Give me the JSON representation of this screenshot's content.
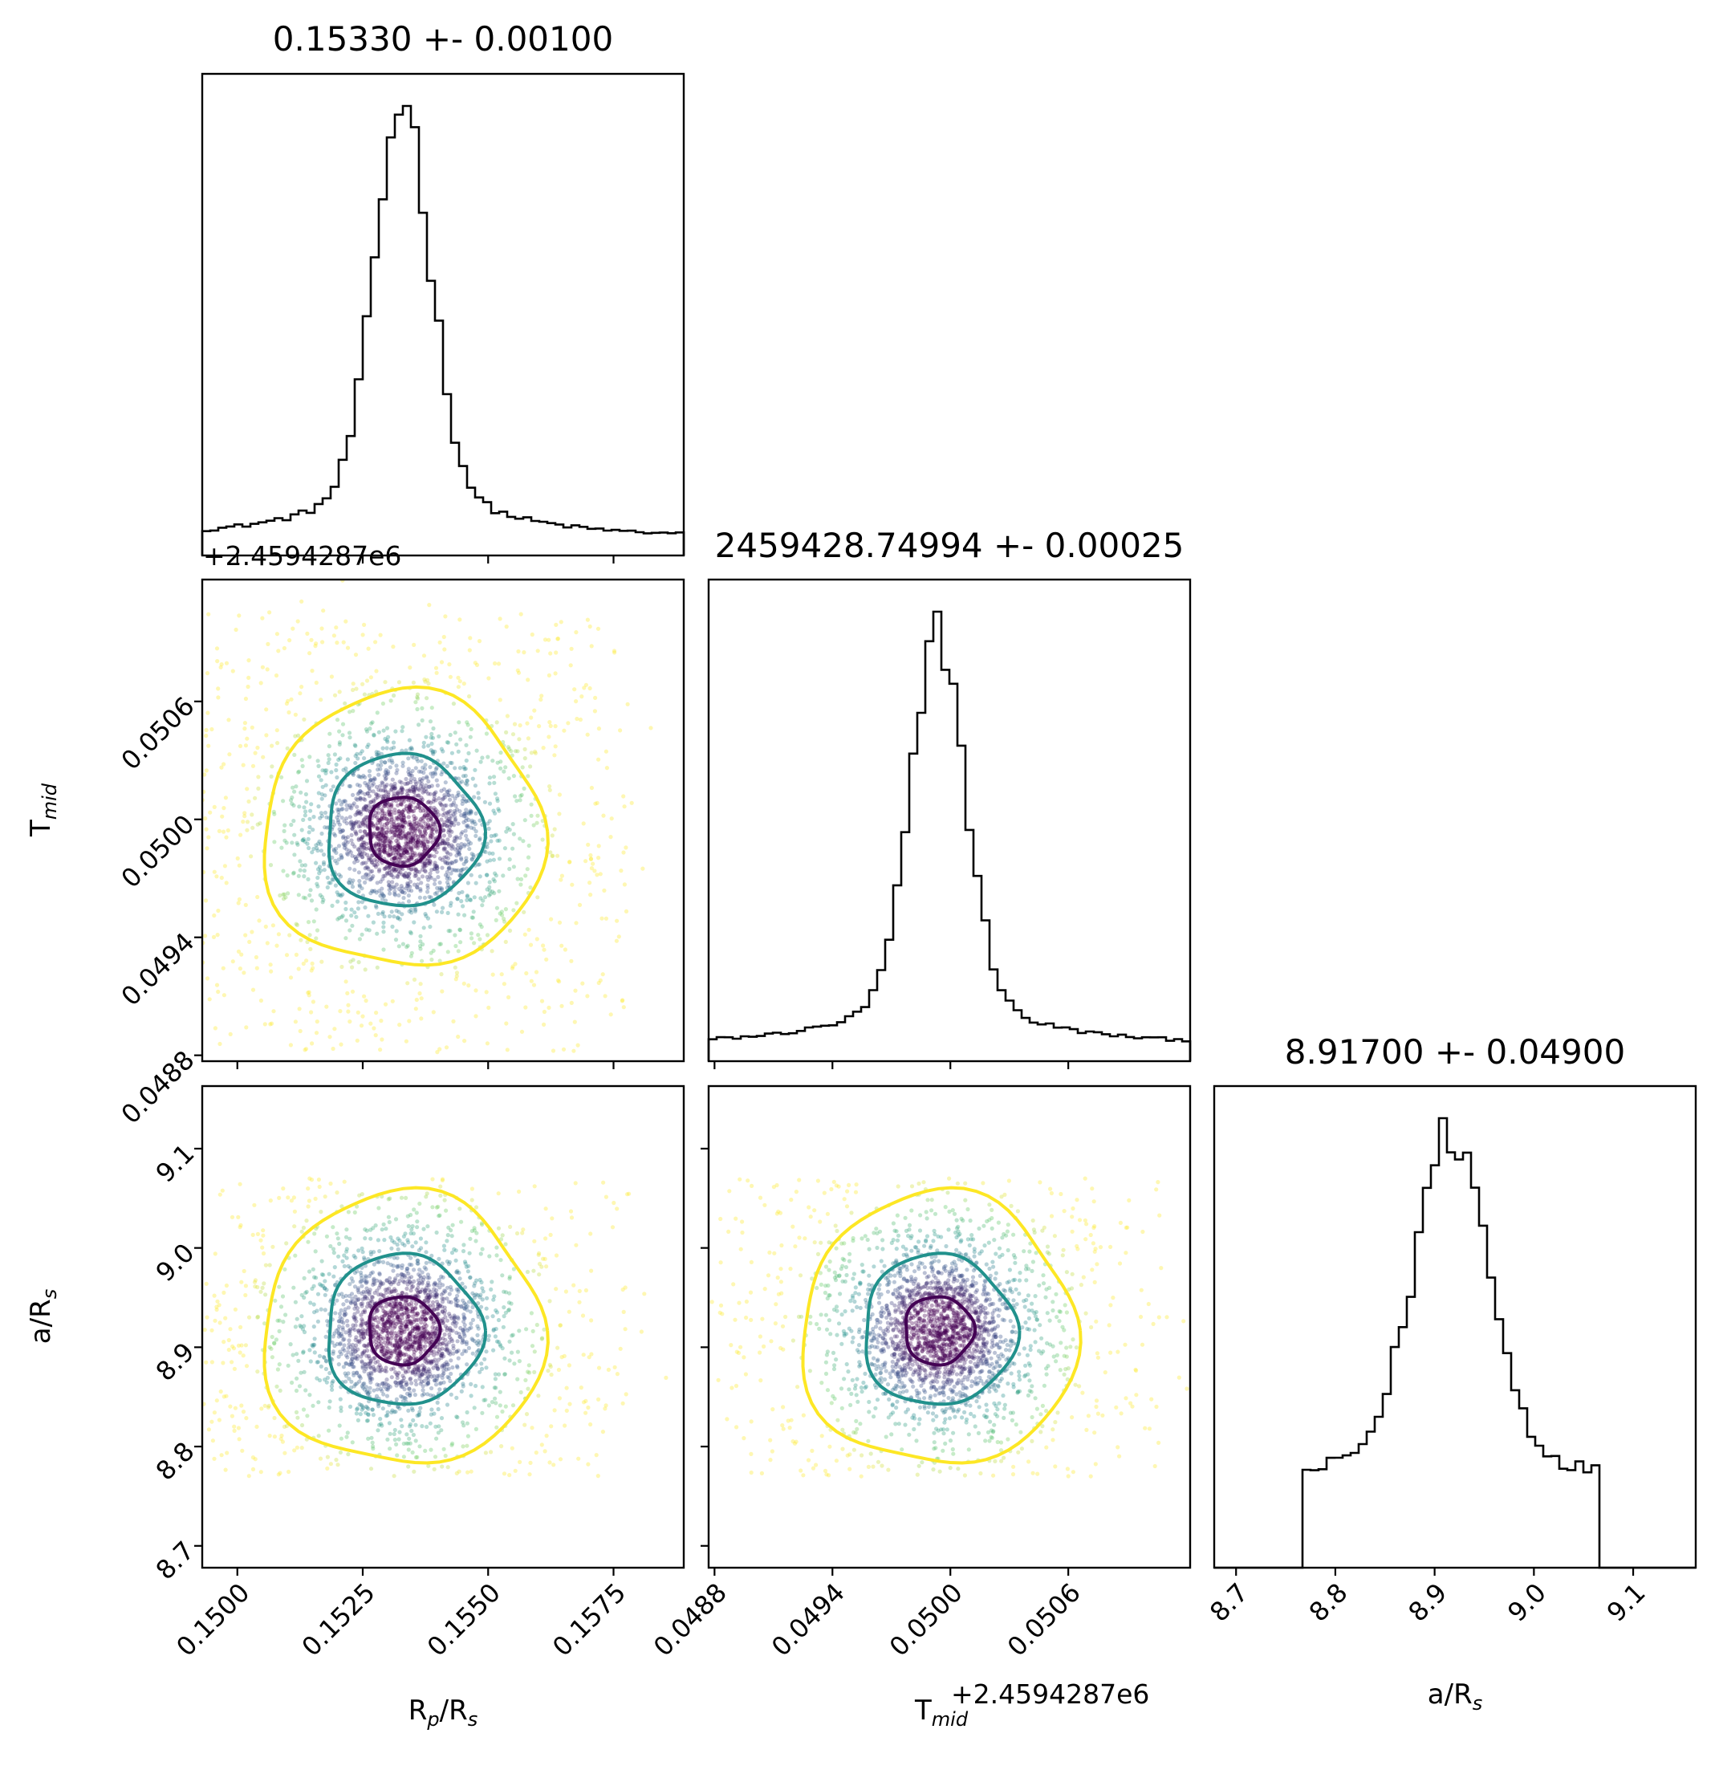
{
  "chart_data": {
    "type": "corner",
    "parameters": [
      {
        "key": "rp",
        "label_main": "R",
        "label_sub1": "p",
        "label_mid": "/R",
        "label_sub2": "s",
        "title": "0.15330 +- 0.00100",
        "mean": 0.1533,
        "std": 0.001,
        "range": [
          0.1493,
          0.1589
        ],
        "ticks": [
          0.15,
          0.1525,
          0.155,
          0.1575
        ],
        "tick_labels": [
          "0.1500",
          "0.1525",
          "0.1550",
          "0.1575"
        ]
      },
      {
        "key": "tmid",
        "label_main": "T",
        "label_sub1": "mid",
        "label_offset": "+2.4594287e6",
        "title": "2459428.74994 +- 0.00025",
        "mean": 0.04994,
        "std": 0.00025,
        "offset": "+2.4594287e6",
        "range": [
          0.04877,
          0.05122
        ],
        "ticks": [
          0.0488,
          0.0494,
          0.05,
          0.0506
        ],
        "tick_labels": [
          "0.0488",
          "0.0494",
          "0.0500",
          "0.0506"
        ]
      },
      {
        "key": "ars",
        "label_main": "a/R",
        "label_sub1": "s",
        "title": "8.91700 +- 0.04900",
        "mean": 8.917,
        "std": 0.049,
        "range": [
          8.678,
          9.163
        ],
        "ticks": [
          8.7,
          8.8,
          8.9,
          9.0,
          9.1
        ],
        "tick_labels": [
          "8.7",
          "8.8",
          "8.9",
          "9.0",
          "9.1"
        ]
      }
    ],
    "contour_colors": [
      "#fde725",
      "#21918c",
      "#440154"
    ],
    "sample_colormap": "viridis",
    "grid": false,
    "legend": "none"
  }
}
